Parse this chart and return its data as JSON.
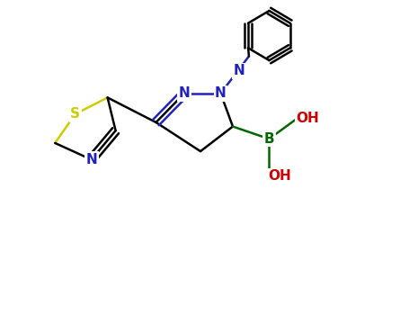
{
  "background_color": "#ffffff",
  "bond_color": "#000000",
  "figsize": [
    4.55,
    3.5
  ],
  "dpi": 100,
  "S_color": "#cccc00",
  "N_color": "#2222bb",
  "B_color": "#006600",
  "OH_color": "#cc0000",
  "lw": 1.8,
  "xlim": [
    0.0,
    10.0
  ],
  "ylim": [
    0.0,
    7.5
  ]
}
